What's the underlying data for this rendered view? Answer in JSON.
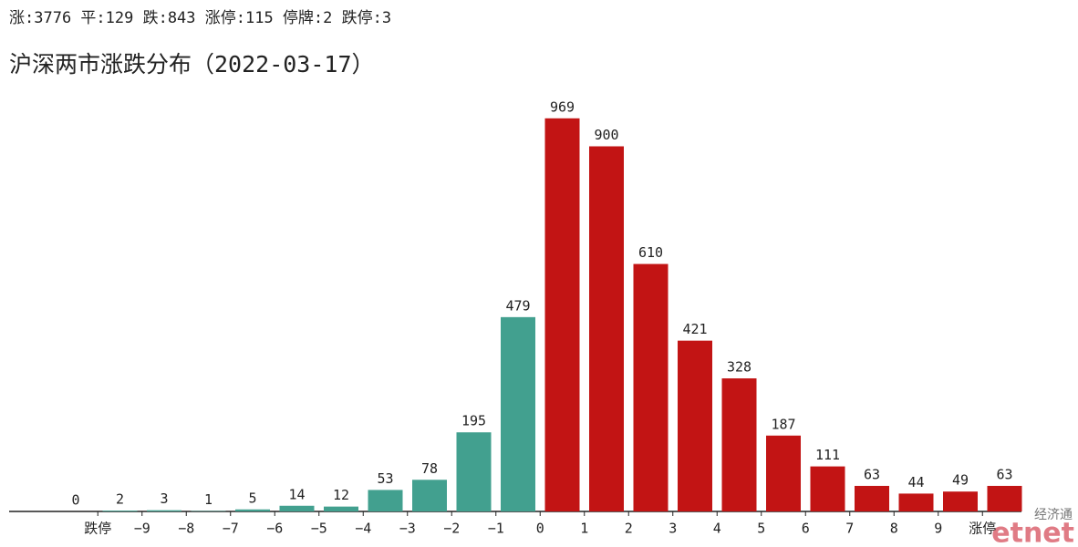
{
  "chart_data": {
    "type": "bar",
    "summary": "涨:3776 平:129 跌:843 涨停:115 停牌:2 跌停:3",
    "title": "沪深两市涨跌分布（2022-03-17）",
    "values": [
      0,
      2,
      3,
      1,
      5,
      14,
      12,
      53,
      78,
      195,
      479,
      969,
      900,
      610,
      421,
      328,
      187,
      111,
      63,
      44,
      49,
      63
    ],
    "colors": [
      "#42a08f",
      "#42a08f",
      "#42a08f",
      "#42a08f",
      "#42a08f",
      "#42a08f",
      "#42a08f",
      "#42a08f",
      "#42a08f",
      "#42a08f",
      "#42a08f",
      "#c21414",
      "#c21414",
      "#c21414",
      "#c21414",
      "#c21414",
      "#c21414",
      "#c21414",
      "#c21414",
      "#c21414",
      "#c21414",
      "#c21414"
    ],
    "xticks": [
      "跌停",
      "−9",
      "−8",
      "−7",
      "−6",
      "−5",
      "−4",
      "−3",
      "−2",
      "−1",
      "0",
      "1",
      "2",
      "3",
      "4",
      "5",
      "6",
      "7",
      "8",
      "9",
      "涨停"
    ],
    "ylim": [
      0,
      1000
    ],
    "watermark": [
      "经济通",
      "etnet"
    ]
  }
}
